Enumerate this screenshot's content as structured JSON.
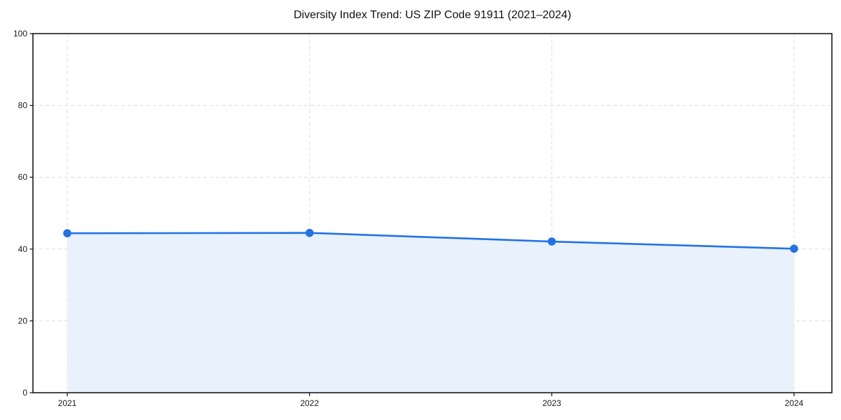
{
  "chart_data": {
    "type": "area",
    "title": "Diversity Index Trend: US ZIP Code 91911 (2021–2024)",
    "categories": [
      "2021",
      "2022",
      "2023",
      "2024"
    ],
    "values": [
      44.4,
      44.5,
      42.1,
      40.1
    ],
    "xlabel": "",
    "ylabel": "",
    "ylim": [
      0,
      100
    ],
    "yticks": [
      0,
      20,
      40,
      60,
      80,
      100
    ],
    "grid": true,
    "grid_style": "dashed",
    "legend_position": "none",
    "colors": {
      "line": "#2273e6",
      "marker": "#2273e6",
      "fill": "#e9f1fd",
      "grid": "#dcdcdc",
      "axis": "#1a1a1a",
      "text": "#1a1a1a",
      "background": "#ffffff"
    }
  }
}
